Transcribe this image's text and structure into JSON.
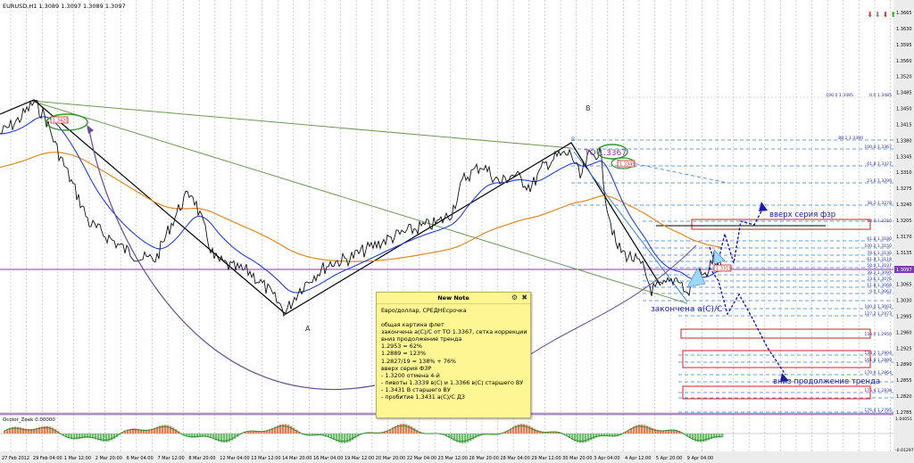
{
  "header": {
    "symbol_line": "EURUSD,H1  1.3089 1.3097 1.3089 1.3097"
  },
  "price_axis": {
    "labels": [
      "1.3665",
      "1.3630",
      "1.3595",
      "1.3560",
      "1.3520",
      "1.3485",
      "1.3450",
      "1.3415",
      "1.3380",
      "1.3345",
      "1.3310",
      "1.3275",
      "1.3240",
      "1.3205",
      "1.3170",
      "1.3135",
      "1.3097",
      "1.3065",
      "1.3030",
      "1.2995",
      "1.2960",
      "1.2925",
      "1.2890",
      "1.2855",
      "1.2820",
      "1.2785"
    ],
    "current": "1.3097"
  },
  "time_axis": {
    "labels": [
      "27 Feb 2012",
      "29 Feb 04:00",
      "1 Mar 12:00",
      "2 Mar 20:00",
      "6 Mar 04:00",
      "7 Mar 12:00",
      "8 Mar 20:00",
      "12 Mar 04:00",
      "13 Mar 12:00",
      "14 Mar 20:00",
      "16 Mar 04:00",
      "19 Mar 12:00",
      "20 Mar 20:00",
      "22 Mar 04:00",
      "23 Mar 12:00",
      "26 Mar 20:00",
      "28 Mar 04:00",
      "29 Mar 12:00",
      "30 Mar 20:00",
      "3 Apr 04:00",
      "4 Apr 12:00",
      "5 Apr 20:00",
      "9 Apr 04:00"
    ]
  },
  "indicator": {
    "label": "Ocolor_Zeek 0.00000",
    "axis_top": "1.04051",
    "axis_bottom": "-0.01297"
  },
  "annotations": {
    "wave_b": "B",
    "wave_a": "A",
    "wave_b_small": "B",
    "to_label": "TO 1.3367",
    "wave_c_end": "закончена а(С)/С",
    "up_fze": "вверх серия фзр",
    "down_trend": "вниз продолжение тренда",
    "label_1_3420": "1.3420",
    "label_1_3319": "1.3319",
    "label_1_3345": "1.3345"
  },
  "fib_levels": [
    "100.0 1.3485",
    "0.0 1.3485",
    "88.2 1.3380",
    "100.0 1.3367",
    "61.8 1.3327",
    "23.6 1.3290",
    "38.2 1.3278",
    "50.0 1.3210",
    "61.8 1.3180",
    "100.0 1.3150",
    "78.6 1.3130",
    "61.8 1.3118",
    "50.0 1.3107",
    "38.2 1.3095",
    "23.6 1.3076",
    "11.8 1.3068",
    "0.0 1.3062",
    "100.0 1.3002",
    "127.2 1.2973",
    "133.0 1.2950",
    "138.2 1.2904",
    "161.8 1.2889",
    "170.0 1.2864",
    "176.4 1.2838",
    "176.4 1.2785"
  ],
  "note": {
    "title": "New Note",
    "lines": [
      "Евро/доллар, СРЕДНЕсрочка",
      "",
      "общая картина флет",
      "закончена а(С)/С от ТО 1.3367, сетка коррекции",
      "вниз продолжение тренда",
      "1.2953 = 62%",
      "1.2889 = 123%",
      "1.2827/19 = 138% + 76%",
      "вверх серия ФЗР",
      "- 1.3200 отмена 4-й",
      "- пивоты 1.3339 в(С) и 1.3366 в(С) старшего ВУ",
      "- 1.3431 В старшего ВУ",
      "- пробитие 1.3431 а(С)/С ДЗ"
    ]
  },
  "colors": {
    "bg": "#ffffff",
    "grid": "#9b9b9b",
    "price": "#111111",
    "ma_blue": "#1f3fd6",
    "ma_orange": "#e08a1e",
    "trend_green": "#6a9a55",
    "projection": "#1a1aa8",
    "purple": "#7d3bb7",
    "fib_red": "#cc2222"
  }
}
